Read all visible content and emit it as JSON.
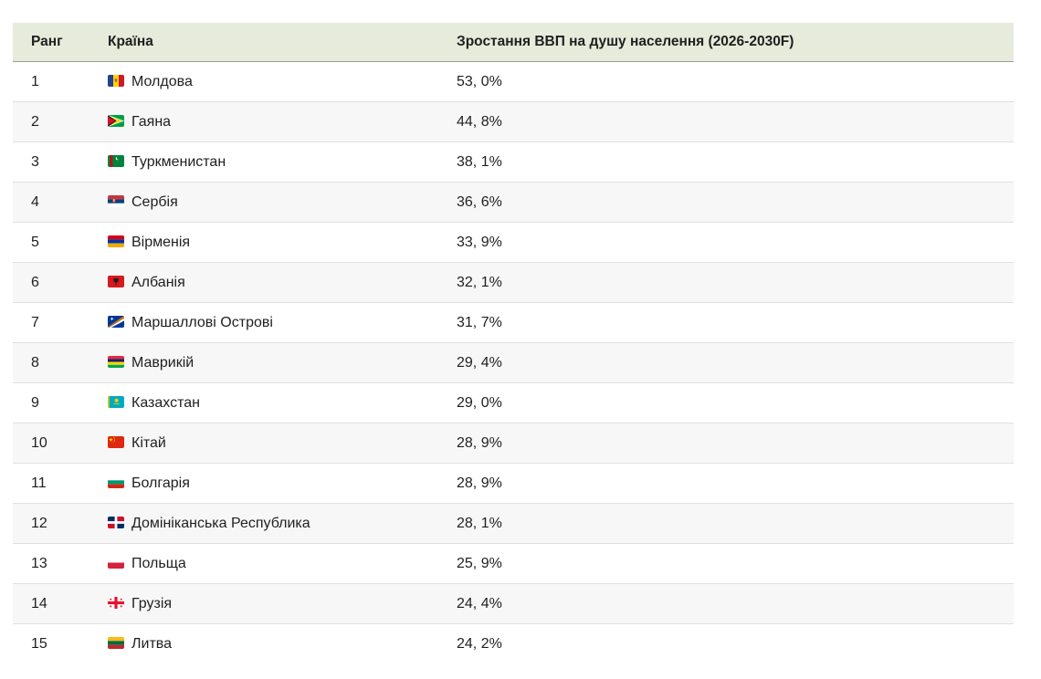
{
  "colors": {
    "header_bg": "#e6ebdb",
    "header_border": "#9a9a9a",
    "row_border": "#e0e0e0",
    "row_alt_bg": "#f7f7f8",
    "text": "#1f1f1f"
  },
  "chart_data": {
    "type": "table",
    "columns": [
      "Ранг",
      "Країна",
      "Зростання ВВП на душу населення (2026-2030F)"
    ],
    "rows": [
      {
        "rank": "1",
        "country": "Молдова",
        "flag": "moldova",
        "value_pct": 53.0,
        "value_label": "53, 0%"
      },
      {
        "rank": "2",
        "country": "Гаяна",
        "flag": "guyana",
        "value_pct": 44.8,
        "value_label": "44, 8%"
      },
      {
        "rank": "3",
        "country": "Туркменистан",
        "flag": "turkmenistan",
        "value_pct": 38.1,
        "value_label": "38, 1%"
      },
      {
        "rank": "4",
        "country": "Сербія",
        "flag": "serbia",
        "value_pct": 36.6,
        "value_label": "36, 6%"
      },
      {
        "rank": "5",
        "country": "Вірменія",
        "flag": "armenia",
        "value_pct": 33.9,
        "value_label": "33, 9%"
      },
      {
        "rank": "6",
        "country": "Албанія",
        "flag": "albania",
        "value_pct": 32.1,
        "value_label": "32, 1%"
      },
      {
        "rank": "7",
        "country": "Маршаллові Острові",
        "flag": "marshall-islands",
        "value_pct": 31.7,
        "value_label": "31, 7%"
      },
      {
        "rank": "8",
        "country": "Маврикій",
        "flag": "mauritius",
        "value_pct": 29.4,
        "value_label": "29, 4%"
      },
      {
        "rank": "9",
        "country": "Казахстан",
        "flag": "kazakhstan",
        "value_pct": 29.0,
        "value_label": "29, 0%"
      },
      {
        "rank": "10",
        "country": "Кітай",
        "flag": "china",
        "value_pct": 28.9,
        "value_label": "28, 9%"
      },
      {
        "rank": "11",
        "country": "Болгарія",
        "flag": "bulgaria",
        "value_pct": 28.9,
        "value_label": "28, 9%"
      },
      {
        "rank": "12",
        "country": "Домініканська Республика",
        "flag": "dominican-republic",
        "value_pct": 28.1,
        "value_label": "28, 1%"
      },
      {
        "rank": "13",
        "country": "Польща",
        "flag": "poland",
        "value_pct": 25.9,
        "value_label": "25, 9%"
      },
      {
        "rank": "14",
        "country": "Грузія",
        "flag": "georgia",
        "value_pct": 24.4,
        "value_label": "24, 4%"
      },
      {
        "rank": "15",
        "country": "Литва",
        "flag": "lithuania",
        "value_pct": 24.2,
        "value_label": "24, 2%"
      }
    ]
  }
}
